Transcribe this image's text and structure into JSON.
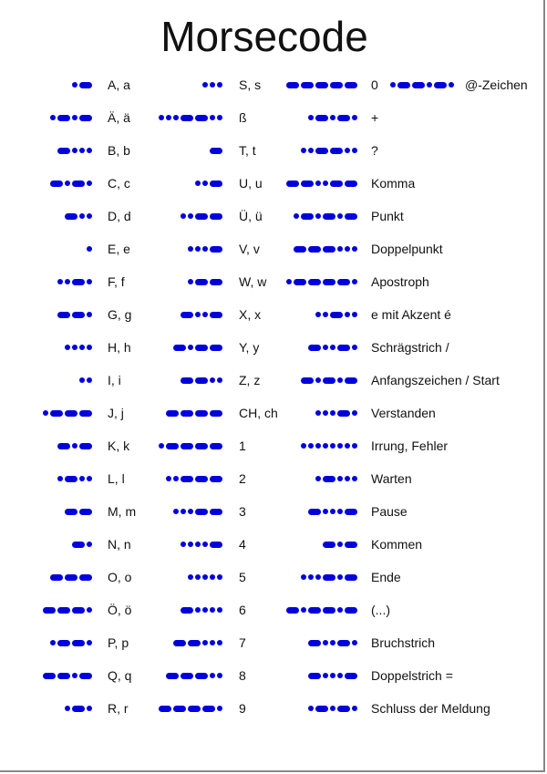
{
  "title": "Morsecode",
  "colors": {
    "symbol": "#0000dd",
    "text": "#111111"
  },
  "columns": [
    [
      {
        "label": "A, a",
        "code": ".-"
      },
      {
        "label": "Ä, ä",
        "code": ".-.-"
      },
      {
        "label": "B, b",
        "code": "-..."
      },
      {
        "label": "C, c",
        "code": "-.-."
      },
      {
        "label": "D, d",
        "code": "-.."
      },
      {
        "label": "E, e",
        "code": "."
      },
      {
        "label": "F, f",
        "code": "..-."
      },
      {
        "label": "G, g",
        "code": "--."
      },
      {
        "label": "H, h",
        "code": "...."
      },
      {
        "label": "I, i",
        "code": ".."
      },
      {
        "label": "J, j",
        "code": ".---"
      },
      {
        "label": "K, k",
        "code": "-.-"
      },
      {
        "label": "L, l",
        "code": ".-.."
      },
      {
        "label": "M, m",
        "code": "--"
      },
      {
        "label": "N, n",
        "code": "-."
      },
      {
        "label": "O, o",
        "code": "---"
      },
      {
        "label": "Ö, ö",
        "code": "---."
      },
      {
        "label": "P, p",
        "code": ".--."
      },
      {
        "label": "Q, q",
        "code": "--.-"
      },
      {
        "label": "R, r",
        "code": ".-."
      }
    ],
    [
      {
        "label": "S, s",
        "code": "..."
      },
      {
        "label": "ß",
        "code": "...--.."
      },
      {
        "label": "T, t",
        "code": "-"
      },
      {
        "label": "U, u",
        "code": "..-"
      },
      {
        "label": "Ü, ü",
        "code": "..--"
      },
      {
        "label": "V, v",
        "code": "...-"
      },
      {
        "label": "W, w",
        "code": ".--"
      },
      {
        "label": "X, x",
        "code": "-..-"
      },
      {
        "label": "Y, y",
        "code": "-.--"
      },
      {
        "label": "Z, z",
        "code": "--.."
      },
      {
        "label": "CH, ch",
        "code": "----"
      },
      {
        "label": "1",
        "code": ".----"
      },
      {
        "label": "2",
        "code": "..---"
      },
      {
        "label": "3",
        "code": "...--"
      },
      {
        "label": "4",
        "code": "....-"
      },
      {
        "label": "5",
        "code": "....."
      },
      {
        "label": "6",
        "code": "-...."
      },
      {
        "label": "7",
        "code": "--..."
      },
      {
        "label": "8",
        "code": "---.."
      },
      {
        "label": "9",
        "code": "----."
      }
    ],
    [
      {
        "label": "0",
        "code": "-----"
      },
      {
        "label": "+",
        "code": ".-.-."
      },
      {
        "label": "?",
        "code": "..--.."
      },
      {
        "label": "Komma",
        "code": "--..--"
      },
      {
        "label": "Punkt",
        "code": ".-.-.-"
      },
      {
        "label": "Doppelpunkt",
        "code": "---..."
      },
      {
        "label": "Apostroph",
        "code": ".----."
      },
      {
        "label": "e mit Akzent é",
        "code": "..-.."
      },
      {
        "label": "Schrägstrich /",
        "code": "-..-."
      },
      {
        "label": "Anfangszeichen / Start",
        "code": "-.-.-"
      },
      {
        "label": "Verstanden",
        "code": "...-."
      },
      {
        "label": "Irrung, Fehler",
        "code": "........"
      },
      {
        "label": "Warten",
        "code": ".-..."
      },
      {
        "label": "Pause",
        "code": "-...-"
      },
      {
        "label": "Kommen",
        "code": "-.-"
      },
      {
        "label": "Ende",
        "code": "...-.-"
      },
      {
        "label": "(...)",
        "code": "-.--.-"
      },
      {
        "label": "Bruchstrich",
        "code": "-..-."
      },
      {
        "label": "Doppelstrich =",
        "code": "-...-"
      },
      {
        "label": "Schluss der Meldung",
        "code": ".-.-."
      }
    ]
  ],
  "extra": {
    "label": "@-Zeichen",
    "code": ".--.-."
  }
}
